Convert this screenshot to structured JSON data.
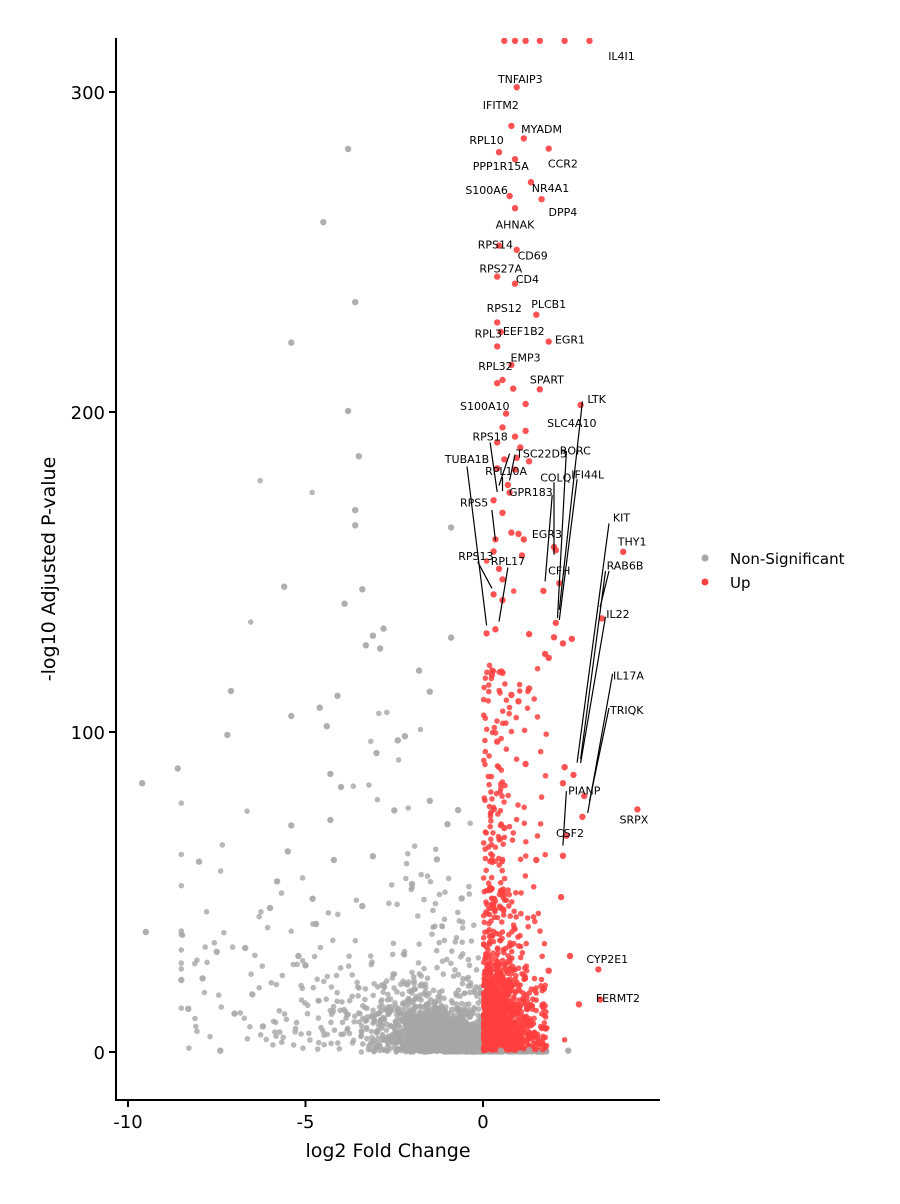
{
  "chart_data": {
    "type": "scatter",
    "title": "",
    "xlabel": "log2 Fold Change",
    "ylabel": "-log10 Adjusted P-value",
    "xlim": [
      -10.2,
      4.9
    ],
    "ylim": [
      -15,
      316
    ],
    "x_ticks": [
      -10,
      -5,
      0
    ],
    "x_tick_labels": [
      "-10",
      "-5",
      "0"
    ],
    "y_ticks": [
      0,
      100,
      200,
      300
    ],
    "y_tick_labels": [
      "0",
      "100",
      "200",
      "300"
    ],
    "grid": false,
    "legend_position": "right",
    "series": [
      {
        "name": "Non-Significant",
        "color": "#a6a6a6",
        "points": [
          [
            -9.6,
            84
          ],
          [
            -9.5,
            37.5
          ],
          [
            -8.6,
            88.6
          ],
          [
            -8.0,
            59.5
          ],
          [
            -7.5,
            31.3
          ],
          [
            -7.4,
            0.4
          ],
          [
            -7.2,
            99.1
          ],
          [
            -7.1,
            112.8
          ],
          [
            -6.7,
            32.5
          ],
          [
            -5.8,
            53.3
          ],
          [
            -5.6,
            145.4
          ],
          [
            -5.5,
            62.7
          ],
          [
            -5.4,
            105
          ],
          [
            -5.4,
            221.7
          ],
          [
            -5.4,
            70.8
          ],
          [
            -5.0,
            27.1
          ],
          [
            -4.8,
            47.9
          ],
          [
            -4.6,
            107.6
          ],
          [
            -4.5,
            259.3
          ],
          [
            -4.4,
            101.8
          ],
          [
            -4.3,
            86.9
          ],
          [
            -4.3,
            72.5
          ],
          [
            -4.1,
            111.3
          ],
          [
            -4.0,
            82.8
          ],
          [
            -3.9,
            140.1
          ],
          [
            -3.8,
            282.2
          ],
          [
            -3.6,
            164.6
          ],
          [
            -3.6,
            169.3
          ],
          [
            -3.6,
            234.3
          ],
          [
            -3.5,
            186.2
          ],
          [
            -3.4,
            144.6
          ],
          [
            -3.3,
            127.1
          ],
          [
            -3.1,
            130.1
          ],
          [
            -3.0,
            93.4
          ],
          [
            -2.9,
            126.1
          ],
          [
            -2.8,
            132.3
          ],
          [
            -2.4,
            97.4
          ],
          [
            -2.2,
            98.7
          ],
          [
            -1.8,
            119.2
          ],
          [
            -1.5,
            112.6
          ],
          [
            -0.9,
            129.5
          ],
          [
            -0.9,
            163.9
          ],
          [
            -3.8,
            200.3
          ],
          [
            -0.2,
            0.5
          ],
          [
            0.5,
            0.4
          ],
          [
            1.3,
            0.6
          ],
          [
            2.4,
            0.4
          ],
          [
            -1.5,
            78.5
          ],
          [
            -1.0,
            71.2
          ],
          [
            -0.7,
            75.6
          ],
          [
            -2.0,
            52.5
          ],
          [
            -3.1,
            61.2
          ],
          [
            -4.7,
            40.0
          ],
          [
            -6.0,
            45.0
          ],
          [
            -1.3,
            60.2
          ],
          [
            -0.6,
            48.0
          ],
          [
            -2.5,
            75.5
          ],
          [
            -3.4,
            45.6
          ],
          [
            -4.2,
            60.0
          ],
          [
            -5.2,
            30.0
          ],
          [
            -6.5,
            18.0
          ],
          [
            -7.9,
            23.0
          ],
          [
            -8.3,
            13.5
          ],
          [
            -8.5,
            22.5
          ],
          [
            -7.0,
            12.0
          ],
          [
            -6.2,
            8.0
          ]
        ],
        "cloud_points": 2600
      },
      {
        "name": "Up",
        "color": "#ff4040",
        "points": [
          [
            0.6,
            316
          ],
          [
            0.9,
            316
          ],
          [
            1.2,
            316
          ],
          [
            1.6,
            316
          ],
          [
            2.3,
            316
          ],
          [
            3.0,
            316
          ],
          [
            0.95,
            301.5
          ],
          [
            0.8,
            289.4
          ],
          [
            1.15,
            285.5
          ],
          [
            0.45,
            281.2
          ],
          [
            1.85,
            282.3
          ],
          [
            0.9,
            279.0
          ],
          [
            1.35,
            271.8
          ],
          [
            0.75,
            267.5
          ],
          [
            1.65,
            266.5
          ],
          [
            0.9,
            263.7
          ],
          [
            0.45,
            252.0
          ],
          [
            0.95,
            250.7
          ],
          [
            0.4,
            242.3
          ],
          [
            0.9,
            240.1
          ],
          [
            1.5,
            230.4
          ],
          [
            0.4,
            228.0
          ],
          [
            0.5,
            225.0
          ],
          [
            1.85,
            222.0
          ],
          [
            0.4,
            220.5
          ],
          [
            0.8,
            214.7
          ],
          [
            0.4,
            209.0
          ],
          [
            0.85,
            207.3
          ],
          [
            1.6,
            207.1
          ],
          [
            0.55,
            210.0
          ],
          [
            1.2,
            202.5
          ],
          [
            2.75,
            202.2
          ],
          [
            0.65,
            199.5
          ],
          [
            0.55,
            195.2
          ],
          [
            1.2,
            194.1
          ],
          [
            0.9,
            192.3
          ],
          [
            0.4,
            190.5
          ],
          [
            1.05,
            188.9
          ],
          [
            0.95,
            185.7
          ],
          [
            0.6,
            185.2
          ],
          [
            0.9,
            182.0
          ],
          [
            1.3,
            184.6
          ],
          [
            0.4,
            182.4
          ],
          [
            0.7,
            177.2
          ],
          [
            0.75,
            174.8
          ],
          [
            0.3,
            172.4
          ],
          [
            0.55,
            168.5
          ],
          [
            1.0,
            161.9
          ],
          [
            0.8,
            162.3
          ],
          [
            0.35,
            160.2
          ],
          [
            1.15,
            160.2
          ],
          [
            2.0,
            157.8
          ],
          [
            2.05,
            156.8
          ],
          [
            0.3,
            156.4
          ],
          [
            3.95,
            156.3
          ],
          [
            1.1,
            155.2
          ],
          [
            0.45,
            151.0
          ],
          [
            2.15,
            146.5
          ],
          [
            0.55,
            147.7
          ],
          [
            0.3,
            143.0
          ],
          [
            1.7,
            144.1
          ],
          [
            0.55,
            141.2
          ],
          [
            2.05,
            134.1
          ],
          [
            3.35,
            135.5
          ],
          [
            0.35,
            132.1
          ],
          [
            0.1,
            130.8
          ],
          [
            1.3,
            130.6
          ],
          [
            2.0,
            129.6
          ],
          [
            2.5,
            129.1
          ],
          [
            2.25,
            127.7
          ],
          [
            1.75,
            124.4
          ],
          [
            1.85,
            123.2
          ],
          [
            0.25,
            117.9
          ],
          [
            0.55,
            118.5
          ],
          [
            1.3,
            113.6
          ],
          [
            0.8,
            111.6
          ],
          [
            1.0,
            109.6
          ],
          [
            2.3,
            89.0
          ],
          [
            2.55,
            86.6
          ],
          [
            2.25,
            84.0
          ],
          [
            2.85,
            80.0
          ],
          [
            2.8,
            73.5
          ],
          [
            4.35,
            75.8
          ],
          [
            2.35,
            67.6
          ],
          [
            2.25,
            61.3
          ],
          [
            2.45,
            30.0
          ],
          [
            3.25,
            25.8
          ],
          [
            2.7,
            14.9
          ],
          [
            3.3,
            16.4
          ],
          [
            1.85,
            25.4
          ],
          [
            2.2,
            48.4
          ],
          [
            1.5,
            60.0
          ],
          [
            0.4,
            97.0
          ],
          [
            0.6,
            70.0
          ],
          [
            1.2,
            90.0
          ],
          [
            0.5,
            45.0
          ]
        ],
        "cloud_points": 1300
      }
    ],
    "annotations": [
      {
        "gene": "IL4I1",
        "label_xy": [
          3.9,
          311.2
        ]
      },
      {
        "gene": "TNFAIP3",
        "label_xy": [
          1.05,
          304.0
        ]
      },
      {
        "gene": "IFITM2",
        "label_xy": [
          0.5,
          295.9
        ]
      },
      {
        "gene": "MYADM",
        "label_xy": [
          1.65,
          288.5
        ]
      },
      {
        "gene": "RPL10",
        "label_xy": [
          0.1,
          285.0
        ]
      },
      {
        "gene": "CCR2",
        "label_xy": [
          2.25,
          277.6
        ]
      },
      {
        "gene": "PPP1R15A",
        "label_xy": [
          0.5,
          276.9
        ]
      },
      {
        "gene": "NR4A1",
        "label_xy": [
          1.9,
          270.0
        ]
      },
      {
        "gene": "S100A6",
        "label_xy": [
          0.1,
          269.4
        ]
      },
      {
        "gene": "DPP4",
        "label_xy": [
          2.25,
          262.5
        ]
      },
      {
        "gene": "AHNAK",
        "label_xy": [
          0.9,
          258.6
        ]
      },
      {
        "gene": "RPS14",
        "label_xy": [
          0.35,
          252.3
        ]
      },
      {
        "gene": "CD69",
        "label_xy": [
          1.4,
          248.9
        ]
      },
      {
        "gene": "RPS27A",
        "label_xy": [
          0.5,
          244.8
        ]
      },
      {
        "gene": "CD4",
        "label_xy": [
          1.25,
          241.6
        ]
      },
      {
        "gene": "PLCB1",
        "label_xy": [
          1.85,
          233.7
        ]
      },
      {
        "gene": "RPS12",
        "label_xy": [
          0.6,
          232.5
        ]
      },
      {
        "gene": "RPL3",
        "label_xy": [
          0.15,
          224.6
        ]
      },
      {
        "gene": "EEF1B2",
        "label_xy": [
          1.15,
          225.3
        ]
      },
      {
        "gene": "EGR1",
        "label_xy": [
          2.45,
          222.7
        ]
      },
      {
        "gene": "EMP3",
        "label_xy": [
          1.2,
          217.1
        ]
      },
      {
        "gene": "RPL32",
        "label_xy": [
          0.35,
          214.3
        ]
      },
      {
        "gene": "SPART",
        "label_xy": [
          1.8,
          210.2
        ]
      },
      {
        "gene": "LTK",
        "label_xy": [
          3.2,
          204.1
        ]
      },
      {
        "gene": "S100A10",
        "label_xy": [
          0.05,
          201.8
        ]
      },
      {
        "gene": "SLC4A10",
        "label_xy": [
          2.5,
          196.5
        ]
      },
      {
        "gene": "RPS18",
        "label_xy": [
          0.2,
          192.3
        ]
      },
      {
        "gene": "RORC",
        "label_xy": [
          2.6,
          187.9
        ]
      },
      {
        "gene": "TSC22D3",
        "label_xy": [
          1.65,
          187.0
        ]
      },
      {
        "gene": "TUBA1B",
        "label_xy": [
          -0.45,
          185.3
        ]
      },
      {
        "gene": "RPL10A",
        "label_xy": [
          0.65,
          181.5
        ]
      },
      {
        "gene": "IFI44L",
        "label_xy": [
          2.95,
          180.5
        ]
      },
      {
        "gene": "COLQ",
        "label_xy": [
          2.05,
          179.6
        ]
      },
      {
        "gene": "GPR183",
        "label_xy": [
          1.35,
          175.0
        ]
      },
      {
        "gene": "RPS5",
        "label_xy": [
          -0.25,
          171.7
        ]
      },
      {
        "gene": "KIT",
        "label_xy": [
          3.9,
          167.1
        ]
      },
      {
        "gene": "EGR3",
        "label_xy": [
          1.8,
          161.9
        ]
      },
      {
        "gene": "THY1",
        "label_xy": [
          4.2,
          159.6
        ]
      },
      {
        "gene": "RPS13",
        "label_xy": [
          -0.2,
          155.0
        ]
      },
      {
        "gene": "RPL17",
        "label_xy": [
          0.7,
          153.4
        ]
      },
      {
        "gene": "RAB6B",
        "label_xy": [
          4.0,
          152.1
        ]
      },
      {
        "gene": "CFH",
        "label_xy": [
          2.15,
          150.4
        ]
      },
      {
        "gene": "IL22",
        "label_xy": [
          3.8,
          136.8
        ]
      },
      {
        "gene": "IL17A",
        "label_xy": [
          4.1,
          117.6
        ]
      },
      {
        "gene": "TRIQK",
        "label_xy": [
          4.05,
          106.9
        ]
      },
      {
        "gene": "PIANP",
        "label_xy": [
          2.85,
          81.7
        ]
      },
      {
        "gene": "SRPX",
        "label_xy": [
          4.25,
          72.6
        ]
      },
      {
        "gene": "CSF2",
        "label_xy": [
          2.45,
          68.4
        ]
      },
      {
        "gene": "CYP2E1",
        "label_xy": [
          3.5,
          29.1
        ]
      },
      {
        "gene": "FERMT2",
        "label_xy": [
          3.8,
          16.9
        ]
      }
    ],
    "leader_lines": [
      [
        [
          0.1,
          133.3
        ],
        [
          -0.45,
          183.0
        ]
      ],
      [
        [
          0.45,
          134.5
        ],
        [
          0.7,
          151.4
        ]
      ],
      [
        [
          0.25,
          144.9
        ],
        [
          -0.15,
          153.2
        ]
      ],
      [
        [
          0.35,
          159.8
        ],
        [
          0.25,
          169.4
        ]
      ],
      [
        [
          0.4,
          175.0
        ],
        [
          0.2,
          190.5
        ]
      ],
      [
        [
          0.45,
          177.0
        ],
        [
          0.75,
          187.0
        ]
      ],
      [
        [
          0.55,
          175.3
        ],
        [
          0.55,
          179.7
        ]
      ],
      [
        [
          0.75,
          178.6
        ],
        [
          0.9,
          186.7
        ]
      ],
      [
        [
          1.75,
          147.1
        ],
        [
          1.95,
          174.0
        ]
      ],
      [
        [
          2.0,
          155.4
        ],
        [
          2.0,
          178.0
        ]
      ],
      [
        [
          2.1,
          135.6
        ],
        [
          2.35,
          187.8
        ]
      ],
      [
        [
          2.15,
          135.0
        ],
        [
          2.65,
          179.0
        ]
      ],
      [
        [
          2.15,
          138.2
        ],
        [
          2.8,
          203.3
        ]
      ],
      [
        [
          2.65,
          90.4
        ],
        [
          3.55,
          165.2
        ]
      ],
      [
        [
          2.75,
          91.5
        ],
        [
          3.45,
          150.3
        ]
      ],
      [
        [
          3.3,
          139.0
        ],
        [
          3.55,
          150.3
        ]
      ],
      [
        [
          2.75,
          90.3
        ],
        [
          3.45,
          136.0
        ]
      ],
      [
        [
          2.95,
          74.7
        ],
        [
          3.65,
          118.2
        ]
      ],
      [
        [
          3.0,
          78.4
        ],
        [
          3.55,
          107.5
        ]
      ],
      [
        [
          2.25,
          64.5
        ],
        [
          2.35,
          81.5
        ]
      ]
    ]
  },
  "legend": {
    "items": [
      {
        "label": "Non-Significant",
        "color": "#a6a6a6"
      },
      {
        "label": "Up",
        "color": "#ff4040"
      }
    ]
  }
}
